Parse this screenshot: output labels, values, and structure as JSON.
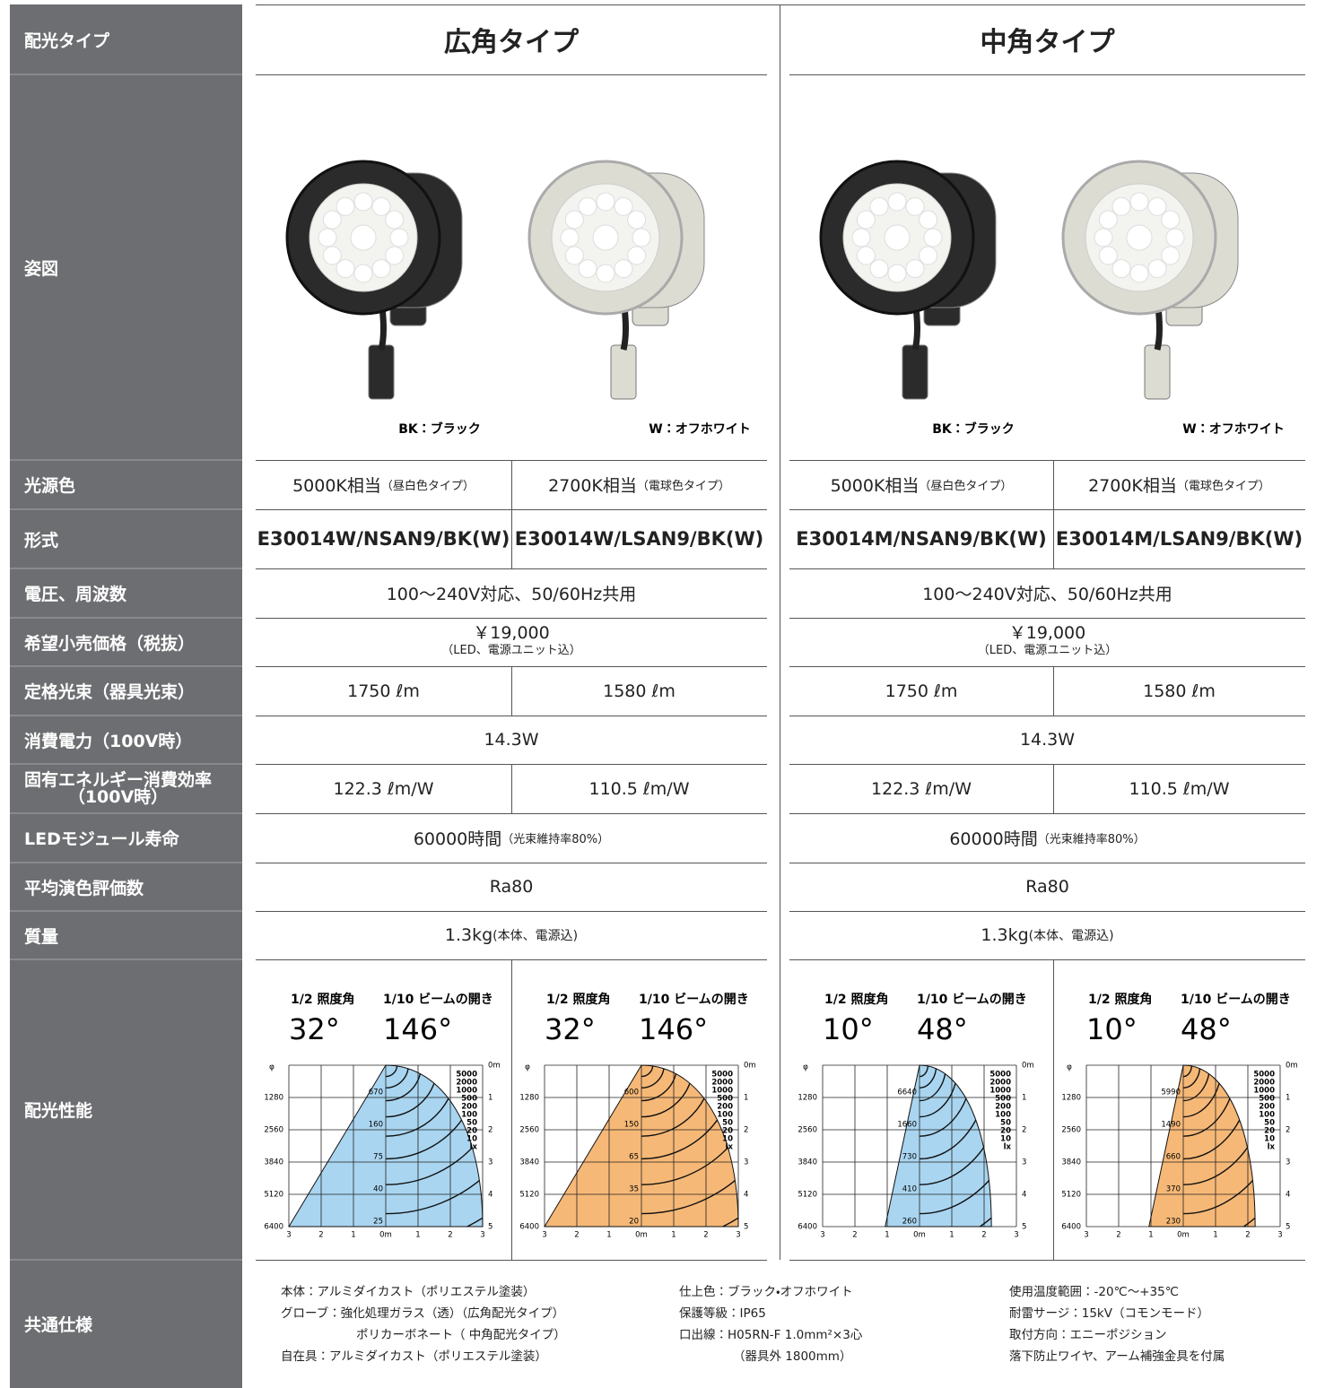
{
  "sidebar": {
    "labels": [
      "配光タイプ",
      "姿図",
      "光源色",
      "形式",
      "電圧、周波数",
      "希望小売価格（税抜）",
      "定格光束（器具光束）",
      "消費電力（100V時）",
      [
        "固有エネルギー消費効率",
        "（100V時）"
      ],
      "LEDモジュール寿命",
      "平均演色評価数",
      "質量",
      "配光性能",
      "共通仕様"
    ]
  },
  "sections": [
    {
      "title": "広角タイプ",
      "images": [
        {
          "caption": "BK：ブラック",
          "body_color": "#2b2b2b"
        },
        {
          "caption": "W：オフホワイト",
          "body_color": "#dcdcd3"
        }
      ],
      "light_color": [
        {
          "main": "5000K相当",
          "sub": "（昼白色タイプ）"
        },
        {
          "main": "2700K相当",
          "sub": "（電球色タイプ）"
        }
      ],
      "model": [
        "E30014W/NSAN9/BK(W)",
        "E30014W/LSAN9/BK(W)"
      ],
      "voltage": "100〜240V対応、50/60Hz共用",
      "price": {
        "main": "￥19,000",
        "sub": "（LED、電源ユニット込）"
      },
      "flux": [
        "1750 ℓm",
        "1580 ℓm"
      ],
      "power": "14.3W",
      "efficiency": [
        "122.3 ℓm/W",
        "110.5 ℓm/W"
      ],
      "life": {
        "main": "60000時間",
        "sub": "（光束維持率80%）"
      },
      "ra": "Ra80",
      "mass": {
        "main": "1.3kg",
        "sub": "(本体、電源込)"
      },
      "distribution": [
        {
          "half_label": "1/2 照度角",
          "beam_label": "1/10 ビームの開き",
          "half": "32°",
          "beam": "146°",
          "color": "#a9d5f0",
          "center_lux": [
            670,
            160,
            75,
            40,
            25
          ]
        },
        {
          "half_label": "1/2 照度角",
          "beam_label": "1/10 ビームの開き",
          "half": "32°",
          "beam": "146°",
          "color": "#f6b877",
          "center_lux": [
            600,
            150,
            65,
            35,
            20
          ]
        }
      ]
    },
    {
      "title": "中角タイプ",
      "images": [
        {
          "caption": "BK：ブラック",
          "body_color": "#2b2b2b"
        },
        {
          "caption": "W：オフホワイト",
          "body_color": "#dcdcd3"
        }
      ],
      "light_color": [
        {
          "main": "5000K相当",
          "sub": "（昼白色タイプ）"
        },
        {
          "main": "2700K相当",
          "sub": "（電球色タイプ）"
        }
      ],
      "model": [
        "E30014M/NSAN9/BK(W)",
        "E30014M/LSAN9/BK(W)"
      ],
      "voltage": "100〜240V対応、50/60Hz共用",
      "price": {
        "main": "￥19,000",
        "sub": "（LED、電源ユニット込）"
      },
      "flux": [
        "1750 ℓm",
        "1580 ℓm"
      ],
      "power": "14.3W",
      "efficiency": [
        "122.3 ℓm/W",
        "110.5 ℓm/W"
      ],
      "life": {
        "main": "60000時間",
        "sub": "（光束維持率80%）"
      },
      "ra": "Ra80",
      "mass": {
        "main": "1.3kg",
        "sub": "(本体、電源込)"
      },
      "distribution": [
        {
          "half_label": "1/2 照度角",
          "beam_label": "1/10 ビームの開き",
          "half": "10°",
          "beam": "48°",
          "color": "#a9d5f0",
          "center_lux": [
            6640,
            1660,
            730,
            410,
            260
          ]
        },
        {
          "half_label": "1/2 照度角",
          "beam_label": "1/10 ビームの開き",
          "half": "10°",
          "beam": "48°",
          "color": "#f6b877",
          "center_lux": [
            5990,
            1490,
            660,
            370,
            230
          ]
        }
      ]
    }
  ],
  "distribution_axes": {
    "phi": "φ",
    "phi_ticks": [
      1280,
      2560,
      3840,
      5120,
      6400
    ],
    "dist_ticks": [
      {
        "value": 0,
        "label": "0m"
      },
      1,
      2,
      3,
      4,
      5
    ],
    "x_ticks": [
      3,
      2,
      1,
      {
        "value": 0,
        "label": "0m"
      },
      1,
      2,
      3
    ],
    "lux_scale": [
      5000,
      2000,
      1000,
      500,
      200,
      100,
      50,
      20,
      10,
      "lx"
    ]
  },
  "common": {
    "columns": [
      [
        "本体：アルミダイカスト（ポリエステル塗装）",
        "グローブ：強化処理ガラス（透）（広角配光タイプ）",
        "ポリカーボネート（ 中角配光タイプ）",
        "自在具：アルミダイカスト（ポリエステル塗装）"
      ],
      [
        "仕上色：ブラック・オフホワイト",
        "保護等級：IP65",
        "口出線：H05RN-F 1.0mm²×3心",
        "（器具外 1800mm）"
      ],
      [
        "使用温度範囲：-20℃〜+35℃",
        "耐雷サージ：15kV（コモンモード）",
        "取付方向：エニーポジション",
        "落下防止ワイヤ、アーム補強金具を付属"
      ]
    ]
  }
}
